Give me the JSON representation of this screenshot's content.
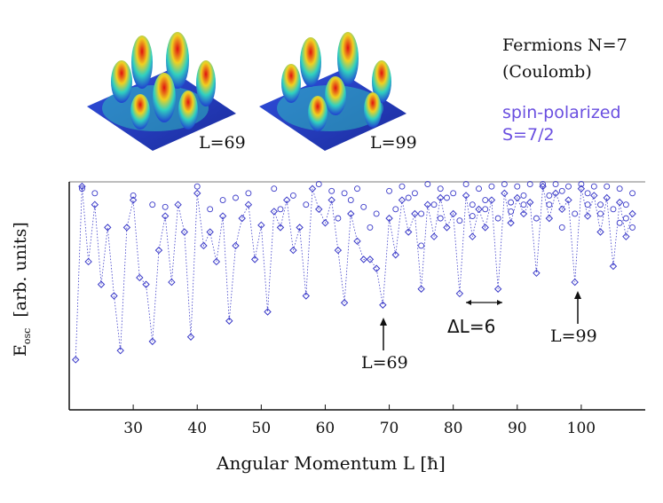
{
  "annotations": {
    "fermions": "Fermions N=7",
    "coulomb": "(Coulomb)",
    "spin_polarized": "spin-polarized",
    "spin_value": "S=7/2",
    "inset_left_label": "L=69",
    "inset_right_label": "L=99",
    "arrow_left_label": "L=69",
    "arrow_right_label": "L=99",
    "delta_label": "ΔL=6"
  },
  "colors": {
    "series": "#3a3ac8",
    "accent_text": "#6a4fe0",
    "axis": "#111111",
    "separator": "#bdbdbd",
    "surface_base": "#1d2fc0"
  },
  "chart_data": {
    "type": "scatter",
    "xlabel": "Angular Momentum L [ħ]",
    "ylabel": "E_osc [arb. units]",
    "ylabel_main": "E",
    "ylabel_sub": "osc",
    "ylabel_units": "[arb. units]",
    "xlim": [
      20,
      110
    ],
    "x_ticks": [
      "30",
      "40",
      "50",
      "60",
      "70",
      "80",
      "90",
      "100"
    ],
    "x_tick_values": [
      30,
      40,
      50,
      60,
      70,
      80,
      90,
      100
    ],
    "ylim": [
      0,
      1
    ],
    "y_ticks": [],
    "grid": false,
    "legend": "none",
    "series": [
      {
        "values": [
          [
            21,
            0.22
          ],
          [
            22,
            0.98
          ],
          [
            23,
            0.65
          ],
          [
            24,
            0.9
          ],
          [
            25,
            0.55
          ],
          [
            26,
            0.8
          ],
          [
            27,
            0.5
          ],
          [
            28,
            0.26
          ],
          [
            29,
            0.8
          ],
          [
            30,
            0.92
          ],
          [
            31,
            0.58
          ],
          [
            32,
            0.55
          ],
          [
            33,
            0.3
          ],
          [
            34,
            0.7
          ],
          [
            35,
            0.85
          ],
          [
            36,
            0.56
          ],
          [
            37,
            0.9
          ],
          [
            38,
            0.78
          ],
          [
            39,
            0.32
          ],
          [
            40,
            0.95
          ],
          [
            41,
            0.72
          ],
          [
            42,
            0.78
          ],
          [
            43,
            0.65
          ],
          [
            44,
            0.85
          ],
          [
            45,
            0.39
          ],
          [
            46,
            0.72
          ],
          [
            47,
            0.84
          ],
          [
            48,
            0.9
          ],
          [
            49,
            0.66
          ],
          [
            50,
            0.81
          ],
          [
            51,
            0.43
          ],
          [
            52,
            0.87
          ],
          [
            53,
            0.8
          ],
          [
            54,
            0.92
          ],
          [
            55,
            0.7
          ],
          [
            56,
            0.8
          ],
          [
            57,
            0.5
          ],
          [
            58,
            0.97
          ],
          [
            59,
            0.88
          ],
          [
            60,
            0.82
          ],
          [
            61,
            0.92
          ],
          [
            62,
            0.7
          ],
          [
            63,
            0.47
          ],
          [
            64,
            0.86
          ],
          [
            65,
            0.74
          ],
          [
            66,
            0.66
          ],
          [
            67,
            0.66
          ],
          [
            68,
            0.62
          ],
          [
            69,
            0.46
          ],
          [
            70,
            0.84
          ],
          [
            71,
            0.68
          ],
          [
            72,
            0.92
          ],
          [
            73,
            0.78
          ],
          [
            74,
            0.86
          ],
          [
            75,
            0.53
          ],
          [
            76,
            0.9
          ],
          [
            77,
            0.76
          ],
          [
            78,
            0.93
          ],
          [
            79,
            0.8
          ],
          [
            80,
            0.86
          ],
          [
            81,
            0.51
          ],
          [
            82,
            0.94
          ],
          [
            83,
            0.76
          ],
          [
            84,
            0.88
          ],
          [
            85,
            0.8
          ],
          [
            86,
            0.92
          ],
          [
            87,
            0.53
          ],
          [
            88,
            0.95
          ],
          [
            89,
            0.82
          ],
          [
            90,
            0.93
          ],
          [
            91,
            0.86
          ],
          [
            92,
            0.91
          ],
          [
            93,
            0.6
          ],
          [
            94,
            0.98
          ],
          [
            95,
            0.84
          ],
          [
            96,
            0.95
          ],
          [
            97,
            0.88
          ],
          [
            98,
            0.92
          ],
          [
            99,
            0.56
          ],
          [
            100,
            0.97
          ],
          [
            101,
            0.85
          ],
          [
            102,
            0.94
          ],
          [
            103,
            0.78
          ],
          [
            104,
            0.93
          ],
          [
            105,
            0.63
          ],
          [
            106,
            0.91
          ],
          [
            107,
            0.76
          ],
          [
            108,
            0.86
          ]
        ]
      }
    ],
    "upper_levels": [
      [
        22,
        0.97
      ],
      [
        24,
        0.95
      ],
      [
        30,
        0.94
      ],
      [
        33,
        0.9
      ],
      [
        35,
        0.89
      ],
      [
        40,
        0.98
      ],
      [
        42,
        0.88
      ],
      [
        44,
        0.92
      ],
      [
        46,
        0.93
      ],
      [
        48,
        0.95
      ],
      [
        52,
        0.97
      ],
      [
        53,
        0.88
      ],
      [
        55,
        0.94
      ],
      [
        57,
        0.9
      ],
      [
        59,
        0.99
      ],
      [
        61,
        0.96
      ],
      [
        62,
        0.84
      ],
      [
        63,
        0.95
      ],
      [
        64,
        0.92
      ],
      [
        65,
        0.97
      ],
      [
        66,
        0.89
      ],
      [
        67,
        0.8
      ],
      [
        68,
        0.86
      ],
      [
        70,
        0.96
      ],
      [
        71,
        0.88
      ],
      [
        72,
        0.98
      ],
      [
        73,
        0.93
      ],
      [
        74,
        0.95
      ],
      [
        75,
        0.86
      ],
      [
        76,
        0.99
      ],
      [
        77,
        0.9
      ],
      [
        78,
        0.97
      ],
      [
        79,
        0.93
      ],
      [
        80,
        0.95
      ],
      [
        81,
        0.83
      ],
      [
        82,
        0.99
      ],
      [
        83,
        0.9
      ],
      [
        84,
        0.97
      ],
      [
        85,
        0.92
      ],
      [
        86,
        0.98
      ],
      [
        87,
        0.84
      ],
      [
        88,
        0.99
      ],
      [
        89,
        0.91
      ],
      [
        90,
        0.98
      ],
      [
        91,
        0.94
      ],
      [
        92,
        0.99
      ],
      [
        93,
        0.84
      ],
      [
        94,
        0.99
      ],
      [
        95,
        0.94
      ],
      [
        96,
        0.99
      ],
      [
        97,
        0.96
      ],
      [
        98,
        0.98
      ],
      [
        99,
        0.86
      ],
      [
        100,
        0.99
      ],
      [
        101,
        0.95
      ],
      [
        102,
        0.98
      ],
      [
        103,
        0.9
      ],
      [
        104,
        0.98
      ],
      [
        105,
        0.88
      ],
      [
        106,
        0.97
      ],
      [
        107,
        0.9
      ],
      [
        108,
        0.95
      ],
      [
        75,
        0.72
      ],
      [
        78,
        0.84
      ],
      [
        83,
        0.85
      ],
      [
        85,
        0.88
      ],
      [
        89,
        0.87
      ],
      [
        91,
        0.9
      ],
      [
        95,
        0.9
      ],
      [
        97,
        0.8
      ],
      [
        101,
        0.9
      ],
      [
        103,
        0.86
      ],
      [
        106,
        0.82
      ],
      [
        107,
        0.84
      ],
      [
        108,
        0.8
      ]
    ]
  }
}
